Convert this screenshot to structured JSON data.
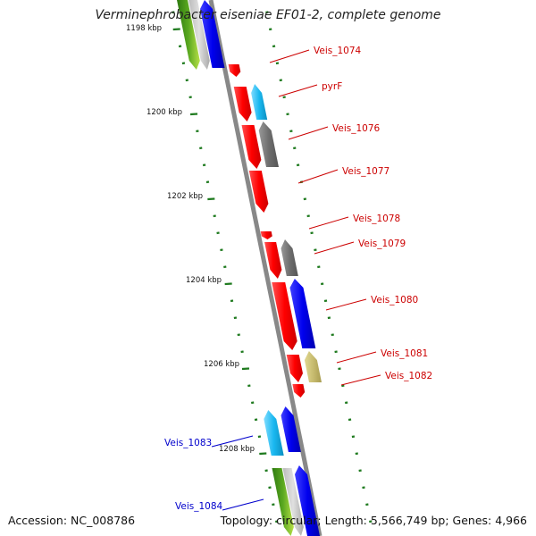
{
  "title": "Verminephrobacter eiseniae EF01-2, complete genome",
  "footer": {
    "accession": "Accession: NC_008786",
    "topology": "Topology: circular; Length: 5,566,749 bp; Genes: 4,966"
  },
  "colors": {
    "backbone": "#8a8a8a",
    "tick": "#1e7a1e",
    "red_gene": "#ff0000",
    "gray_gene": "#6e6e6e",
    "cyan_gene": "#19b8f0",
    "blue_gene": "#0000ee",
    "olive_gene": "#c8bc70",
    "green_gene": "#4a9a1a",
    "red_label": "#cc0000",
    "blue_label": "#0000cc"
  },
  "scale_labels": [
    "1198 kbp",
    "1200 kbp",
    "1202 kbp",
    "1204 kbp",
    "1206 kbp",
    "1208 kbp"
  ],
  "gene_labels": [
    {
      "text": "Veis_1074",
      "color": "red"
    },
    {
      "text": "pyrF",
      "color": "red"
    },
    {
      "text": "Veis_1076",
      "color": "red"
    },
    {
      "text": "Veis_1077",
      "color": "red"
    },
    {
      "text": "Veis_1078",
      "color": "red"
    },
    {
      "text": "Veis_1079",
      "color": "red"
    },
    {
      "text": "Veis_1080",
      "color": "red"
    },
    {
      "text": "Veis_1081",
      "color": "red"
    },
    {
      "text": "Veis_1082",
      "color": "red"
    },
    {
      "text": "Veis_1083",
      "color": "blue"
    },
    {
      "text": "Veis_1084",
      "color": "blue"
    }
  ]
}
